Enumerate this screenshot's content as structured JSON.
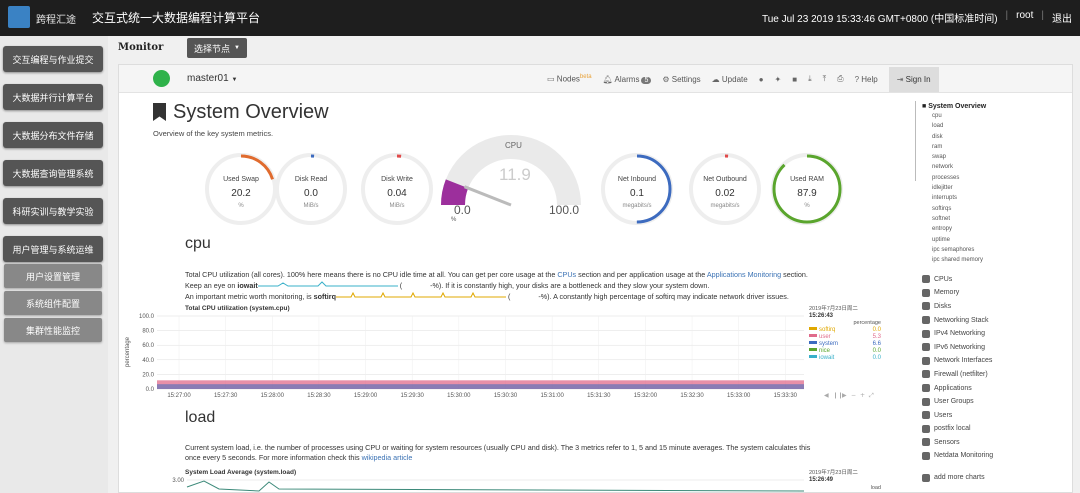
{
  "topbar": {
    "brand": "跨程汇途",
    "title": "交互式统一大数据编程计算平台",
    "datetime": "Tue Jul 23 2019 15:33:46 GMT+0800 (中国标准时间)",
    "user": "root",
    "logout": "退出"
  },
  "sidebar": {
    "items": [
      {
        "label": "交互编程与作业提交"
      },
      {
        "label": "大数据并行计算平台"
      },
      {
        "label": "大数据分布文件存储"
      },
      {
        "label": "大数据查询管理系统"
      },
      {
        "label": "科研实训与教学实验"
      },
      {
        "label": "用户管理与系统运维"
      }
    ],
    "subitems": [
      {
        "label": "用户设置管理"
      },
      {
        "label": "系统组件配置"
      },
      {
        "label": "集群性能监控"
      }
    ]
  },
  "monitor": {
    "label": "Monitor",
    "node_select": "选择节点"
  },
  "netdata_nav": {
    "host": "master01",
    "nodes": "Nodes",
    "beta": "beta",
    "alarms": "Alarms",
    "alarms_count": "5",
    "settings": "Settings",
    "update": "Update",
    "help": "Help",
    "signin": "Sign In"
  },
  "overview": {
    "title": "System Overview",
    "subtitle": "Overview of the key system metrics."
  },
  "gauges": [
    {
      "label": "Used Swap",
      "value": "20.2",
      "unit": "%",
      "color": "#e06b2e",
      "fraction": 0.202
    },
    {
      "label": "Disk Read",
      "value": "0.0",
      "unit": "MiB/s",
      "color": "#3d6bbf",
      "fraction": 0.0
    },
    {
      "label": "Disk Write",
      "value": "0.04",
      "unit": "MiB/s",
      "color": "#e04a4a",
      "fraction": 0.02
    },
    {
      "label": "Net Inbound",
      "value": "0.1",
      "unit": "megabits/s",
      "color": "#3d6bbf",
      "fraction": 0.5
    },
    {
      "label": "Net Outbound",
      "value": "0.02",
      "unit": "megabits/s",
      "color": "#e04a4a",
      "fraction": 0.01
    },
    {
      "label": "Used RAM",
      "value": "87.9",
      "unit": "%",
      "color": "#5aa52d",
      "fraction": 0.879
    }
  ],
  "cpu_gauge": {
    "title": "CPU",
    "value": "11.9",
    "min": "0.0",
    "max": "100.0",
    "pct": "%",
    "color": "#9c2f9c"
  },
  "cpu_section": {
    "heading": "cpu",
    "line1a": "Total CPU utilization (all cores). 100% here means there is no CPU idle time at all. You can get per core usage at the ",
    "link1": "CPUs",
    "line1b": " section and per application usage at the ",
    "link2": "Applications Monitoring",
    "line1c": " section.",
    "line2a": "Keep an eye on ",
    "iowait": "iowait",
    "line2b": " (",
    "line2c": "-%). If it is constantly high, your disks are a bottleneck and they slow your system down.",
    "line3a": "An important metric worth monitoring, is ",
    "softirq": "softirq",
    "line3b": " (",
    "line3c": "-%). A constantly high percentage of softirq may indicate network driver issues."
  },
  "load_section": {
    "heading": "load",
    "line1": "Current system load, i.e. the number of processes using CPU or waiting for system resources (usually CPU and disk). The 3 metrics refer to 1, 5 and 15 minute averages. The system calculates this",
    "line2a": "once every 5 seconds. For more information check this ",
    "link": "wikipedia article"
  },
  "chart_data": [
    {
      "type": "area",
      "title": "Total CPU utilization (system.cpu)",
      "ylabel": "percentage",
      "ylim": [
        0,
        100
      ],
      "yticks": [
        "100.0",
        "80.0",
        "60.0",
        "40.0",
        "20.0",
        "0.0"
      ],
      "x": [
        "15:27:00",
        "15:27:30",
        "15:28:00",
        "15:28:30",
        "15:29:00",
        "15:29:30",
        "15:30:00",
        "15:30:30",
        "15:31:00",
        "15:31:30",
        "15:32:00",
        "15:32:30",
        "15:33:00",
        "15:33:30"
      ],
      "timestamp_date": "2019年7月23日周二",
      "timestamp_time": "15:26:43",
      "legend_header": "percentage",
      "series": [
        {
          "name": "softirq",
          "color": "#e0a800",
          "value": "0.0"
        },
        {
          "name": "user",
          "color": "#e06b8b",
          "value": "5.3"
        },
        {
          "name": "system",
          "color": "#3d6bbf",
          "value": "6.6"
        },
        {
          "name": "nice",
          "color": "#5aa52d",
          "value": "0.0"
        },
        {
          "name": "iowait",
          "color": "#3ab0c9",
          "value": "0.0"
        }
      ]
    },
    {
      "type": "line",
      "title": "System Load Average (system.load)",
      "yticks": [
        "3.00"
      ],
      "timestamp_date": "2019年7月23日周二",
      "timestamp_time": "15:26:49",
      "legend_header": "load"
    }
  ],
  "menu": {
    "active": "System Overview",
    "subs": [
      "cpu",
      "load",
      "disk",
      "ram",
      "swap",
      "network",
      "processes",
      "idlejitter",
      "interrupts",
      "softirqs",
      "softnet",
      "entropy",
      "uptime",
      "ipc semaphores",
      "ipc shared memory"
    ],
    "items": [
      {
        "label": "CPUs",
        "icon": "cpu-icon"
      },
      {
        "label": "Memory",
        "icon": "memory-icon"
      },
      {
        "label": "Disks",
        "icon": "disk-icon"
      },
      {
        "label": "Networking Stack",
        "icon": "network-icon"
      },
      {
        "label": "IPv4 Networking",
        "icon": "network-icon"
      },
      {
        "label": "IPv6 Networking",
        "icon": "network-icon"
      },
      {
        "label": "Network Interfaces",
        "icon": "interfaces-icon"
      },
      {
        "label": "Firewall (netfilter)",
        "icon": "shield-icon"
      },
      {
        "label": "Applications",
        "icon": "heart-icon"
      },
      {
        "label": "User Groups",
        "icon": "users-icon"
      },
      {
        "label": "Users",
        "icon": "user-icon"
      },
      {
        "label": "postfix local",
        "icon": "mail-icon"
      },
      {
        "label": "Sensors",
        "icon": "sensor-icon"
      },
      {
        "label": "Netdata Monitoring",
        "icon": "chart-icon"
      },
      {
        "label": "add more charts",
        "icon": "plus-icon"
      }
    ]
  }
}
